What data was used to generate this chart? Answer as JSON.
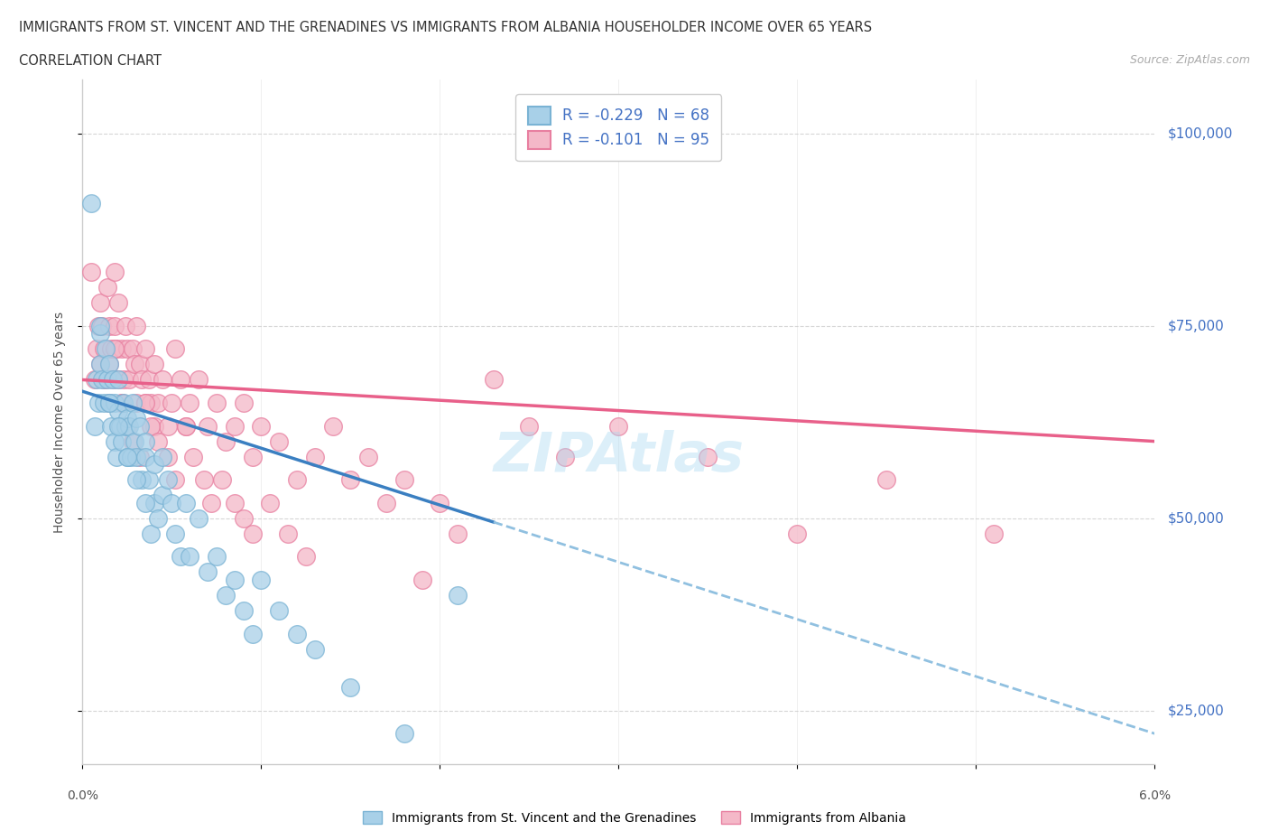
{
  "title_line1": "IMMIGRANTS FROM ST. VINCENT AND THE GRENADINES VS IMMIGRANTS FROM ALBANIA HOUSEHOLDER INCOME OVER 65 YEARS",
  "title_line2": "CORRELATION CHART",
  "source": "Source: ZipAtlas.com",
  "ylabel_labels": [
    "$25,000",
    "$50,000",
    "$75,000",
    "$100,000"
  ],
  "ylabel_values": [
    25000,
    50000,
    75000,
    100000
  ],
  "xlim": [
    0.0,
    6.0
  ],
  "ylim": [
    18000,
    107000
  ],
  "legend_r1": "-0.229",
  "legend_n1": "68",
  "legend_r2": "-0.101",
  "legend_n2": "95",
  "color_blue": "#a8d0e8",
  "color_pink": "#f4b8c8",
  "color_blue_edge": "#7ab3d4",
  "color_pink_edge": "#e87fa0",
  "color_blue_line": "#3a7fc1",
  "color_pink_line": "#e8608a",
  "color_dashed": "#90c0e0",
  "label1": "Immigrants from St. Vincent and the Grenadines",
  "label2": "Immigrants from Albania",
  "sv_x": [
    0.05,
    0.07,
    0.08,
    0.09,
    0.1,
    0.1,
    0.11,
    0.12,
    0.13,
    0.14,
    0.15,
    0.15,
    0.16,
    0.17,
    0.18,
    0.18,
    0.19,
    0.2,
    0.2,
    0.21,
    0.22,
    0.23,
    0.24,
    0.25,
    0.25,
    0.26,
    0.27,
    0.28,
    0.29,
    0.3,
    0.3,
    0.32,
    0.33,
    0.35,
    0.35,
    0.37,
    0.38,
    0.4,
    0.4,
    0.42,
    0.45,
    0.45,
    0.48,
    0.5,
    0.52,
    0.55,
    0.58,
    0.6,
    0.65,
    0.7,
    0.75,
    0.8,
    0.85,
    0.9,
    0.95,
    1.0,
    1.1,
    1.2,
    1.3,
    1.5,
    1.8,
    2.1,
    0.1,
    0.15,
    0.2,
    0.25,
    0.3,
    0.35
  ],
  "sv_y": [
    91000,
    62000,
    68000,
    65000,
    74000,
    70000,
    68000,
    65000,
    72000,
    68000,
    70000,
    65000,
    62000,
    68000,
    65000,
    60000,
    58000,
    68000,
    64000,
    62000,
    60000,
    65000,
    62000,
    58000,
    63000,
    62000,
    58000,
    65000,
    60000,
    63000,
    58000,
    62000,
    55000,
    60000,
    58000,
    55000,
    48000,
    52000,
    57000,
    50000,
    58000,
    53000,
    55000,
    52000,
    48000,
    45000,
    52000,
    45000,
    50000,
    43000,
    45000,
    40000,
    42000,
    38000,
    35000,
    42000,
    38000,
    35000,
    33000,
    28000,
    22000,
    40000,
    75000,
    65000,
    62000,
    58000,
    55000,
    52000
  ],
  "alb_x": [
    0.05,
    0.07,
    0.08,
    0.09,
    0.1,
    0.1,
    0.11,
    0.12,
    0.13,
    0.14,
    0.15,
    0.15,
    0.16,
    0.17,
    0.18,
    0.18,
    0.19,
    0.2,
    0.2,
    0.22,
    0.22,
    0.23,
    0.24,
    0.25,
    0.26,
    0.28,
    0.29,
    0.3,
    0.3,
    0.32,
    0.33,
    0.35,
    0.35,
    0.37,
    0.38,
    0.4,
    0.4,
    0.42,
    0.45,
    0.48,
    0.5,
    0.52,
    0.55,
    0.58,
    0.6,
    0.65,
    0.7,
    0.75,
    0.8,
    0.85,
    0.9,
    0.95,
    1.0,
    1.1,
    1.2,
    1.3,
    1.4,
    1.5,
    1.6,
    1.7,
    1.8,
    1.9,
    2.0,
    2.1,
    2.3,
    2.5,
    2.7,
    3.0,
    3.5,
    4.0,
    4.5,
    5.1,
    0.12,
    0.15,
    0.18,
    0.22,
    0.25,
    0.28,
    0.32,
    0.35,
    0.38,
    0.42,
    0.48,
    0.52,
    0.58,
    0.62,
    0.68,
    0.72,
    0.78,
    0.85,
    0.9,
    0.95,
    1.05,
    1.15,
    1.25
  ],
  "alb_y": [
    82000,
    68000,
    72000,
    75000,
    70000,
    78000,
    75000,
    72000,
    68000,
    80000,
    75000,
    70000,
    72000,
    68000,
    82000,
    75000,
    72000,
    78000,
    68000,
    72000,
    65000,
    68000,
    75000,
    72000,
    68000,
    72000,
    70000,
    75000,
    65000,
    70000,
    68000,
    72000,
    65000,
    68000,
    65000,
    70000,
    62000,
    65000,
    68000,
    62000,
    65000,
    72000,
    68000,
    62000,
    65000,
    68000,
    62000,
    65000,
    60000,
    62000,
    65000,
    58000,
    62000,
    60000,
    55000,
    58000,
    62000,
    55000,
    58000,
    52000,
    55000,
    42000,
    52000,
    48000,
    68000,
    62000,
    58000,
    62000,
    58000,
    48000,
    55000,
    48000,
    68000,
    65000,
    72000,
    65000,
    62000,
    60000,
    58000,
    65000,
    62000,
    60000,
    58000,
    55000,
    62000,
    58000,
    55000,
    52000,
    55000,
    52000,
    50000,
    48000,
    52000,
    48000,
    45000
  ],
  "sv_line_x0": 0.0,
  "sv_line_y0": 66500,
  "sv_line_x1": 2.3,
  "sv_line_y1": 49500,
  "sv_dash_x0": 2.3,
  "sv_dash_y0": 49500,
  "sv_dash_x1": 6.0,
  "sv_dash_y1": 22000,
  "alb_line_x0": 0.0,
  "alb_line_y0": 68000,
  "alb_line_x1": 6.0,
  "alb_line_y1": 60000
}
